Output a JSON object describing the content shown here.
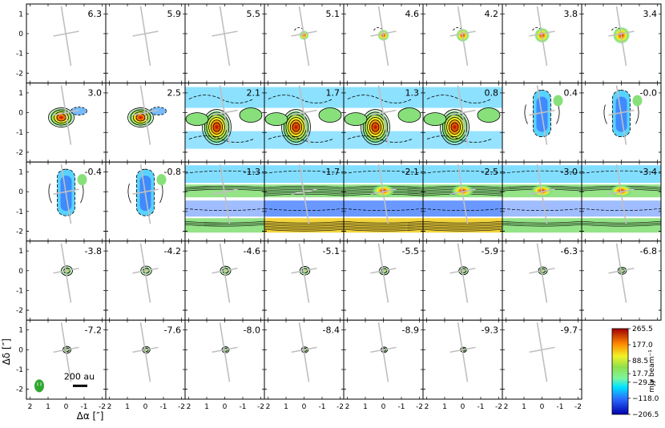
{
  "chart_data": {
    "type": "heatmap",
    "grid": {
      "rows": 5,
      "cols": 8
    },
    "velocity_labels": [
      "6.3",
      "5.9",
      "5.5",
      "5.1",
      "4.6",
      "4.2",
      "3.8",
      "3.4",
      "3.0",
      "2.5",
      "2.1",
      "1.7",
      "1.3",
      "0.8",
      "0.4",
      "-0.0",
      "-0.4",
      "-0.8",
      "-1.3",
      "-1.7",
      "-2.1",
      "-2.5",
      "-3.0",
      "-3.4",
      "-3.8",
      "-4.2",
      "-4.6",
      "-5.1",
      "-5.5",
      "-5.9",
      "-6.3",
      "-6.8",
      "-7.2",
      "-7.6",
      "-8.0",
      "-8.4",
      "-8.9",
      "-9.3",
      "-9.7"
    ],
    "xlabel": "Δα [″]",
    "ylabel": "Δδ [″]",
    "xticks": [
      "2",
      "1",
      "0",
      "-1",
      "-2"
    ],
    "yticks": [
      "1",
      "0",
      "-1",
      "-2"
    ],
    "xlim": [
      2.2,
      -2.2
    ],
    "ylim": [
      -2.5,
      1.5
    ],
    "scalebar": "200 au",
    "colorbar": {
      "label": "mJy beam⁻¹",
      "ticks": [
        "265.5",
        "177.0",
        "88.5",
        "17.7",
        "−29.5",
        "−118.0",
        "−206.5"
      ],
      "min": -206.5,
      "max": 265.5
    },
    "colors": {
      "high": "#b00000",
      "mid": "#6fe06f",
      "zero": "#00e5ff",
      "low": "#0000c8",
      "axis_cross": "#bfbfbf",
      "beam": "#2fa82f"
    }
  }
}
